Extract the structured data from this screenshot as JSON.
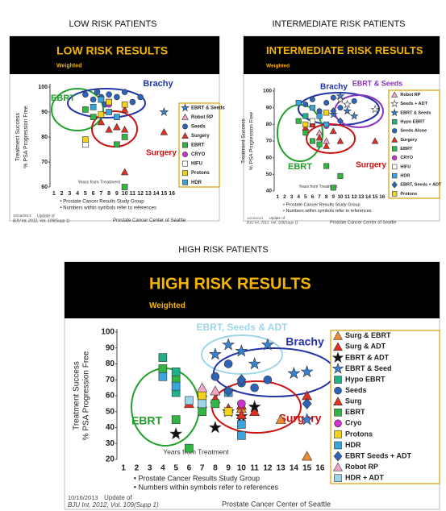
{
  "chart_data": [
    {
      "type": "scatter",
      "heading": "LOW RISK PATIENTS",
      "title": "LOW RISK RESULTS",
      "subtitle": "Weighted",
      "ylabel": [
        "Treatment Success",
        "% PSA Progression Free"
      ],
      "xlabel": "Years from Treatment",
      "xlim": [
        0.5,
        16.5
      ],
      "xticks": [
        1,
        2,
        3,
        4,
        5,
        6,
        7,
        8,
        9,
        10,
        11,
        12,
        13,
        14,
        15,
        16
      ],
      "ylim": [
        60,
        100
      ],
      "yticks": [
        60,
        70,
        80,
        90,
        100
      ],
      "annotations": [
        {
          "text": "EBRT",
          "color": "#22a02a"
        },
        {
          "text": "Brachy",
          "color": "#2233aa"
        },
        {
          "text": "Surgery",
          "color": "#cc1111"
        }
      ],
      "series": [
        {
          "name": "EBRT & Seeds",
          "marker": "star",
          "color": "#3a7fd0",
          "x": [
            15
          ],
          "values": [
            90
          ]
        },
        {
          "name": "Robot RP",
          "marker": "triangle",
          "color": "#f4a6c8",
          "x": [
            9
          ],
          "values": [
            84
          ]
        },
        {
          "name": "Seeds",
          "marker": "circle",
          "color": "#2e63b8",
          "x": [
            5,
            6,
            6.5,
            7,
            7.5,
            8,
            9,
            10,
            11,
            12
          ],
          "values": [
            97,
            95,
            98,
            96,
            93,
            97,
            96,
            98,
            94,
            96
          ]
        },
        {
          "name": "Surgery",
          "marker": "triangle",
          "color": "#e03020",
          "x": [
            7,
            8,
            9,
            10,
            10,
            10,
            15
          ],
          "values": [
            86,
            83,
            84,
            83,
            66,
            91,
            82
          ]
        },
        {
          "name": "EBRT",
          "marker": "square",
          "color": "#33b544",
          "x": [
            5,
            6,
            7,
            8,
            9,
            10,
            10
          ],
          "values": [
            91,
            88,
            95,
            94,
            77,
            80,
            60
          ]
        },
        {
          "name": "CRYO",
          "marker": "circle",
          "color": "#cc33cc",
          "x": [
            8
          ],
          "values": [
            93
          ]
        },
        {
          "name": "HIFU",
          "marker": "square",
          "color": "#ffffff",
          "x": [
            5
          ],
          "values": [
            77
          ]
        },
        {
          "name": "Protons",
          "marker": "square",
          "color": "#f2d21b",
          "x": [
            5,
            7,
            8,
            10
          ],
          "values": [
            79,
            89,
            94,
            93
          ]
        },
        {
          "name": "HDR",
          "marker": "square",
          "color": "#3aa5dc",
          "x": [
            6,
            7,
            8,
            9
          ],
          "values": [
            92,
            95,
            90,
            88
          ]
        }
      ],
      "notes": [
        "• Prostate Cancer Results Study Group",
        "• Numbers within symbols refer to references"
      ],
      "source": [
        "10/16/2013",
        "Update of",
        "BJU Int, 2012, Vol. 109(Supp 1)",
        "Prostate Cancer Center of Seattle"
      ]
    },
    {
      "type": "scatter",
      "heading": "INTERMEDIATE RISK PATIENTS",
      "title": "INTERMEDIATE RISK RESULTS",
      "subtitle": "Weighted",
      "ylabel": [
        "Treatment Success",
        "% PSA Progression Free"
      ],
      "xlabel": "Years from Treatment",
      "xlim": [
        0.5,
        16.5
      ],
      "xticks": [
        1,
        2,
        3,
        4,
        5,
        6,
        7,
        8,
        9,
        10,
        11,
        12,
        13,
        14,
        15,
        16
      ],
      "ylim": [
        40,
        100
      ],
      "yticks": [
        40,
        50,
        60,
        70,
        80,
        90,
        100
      ],
      "annotations": [
        {
          "text": "Brachy",
          "color": "#2233aa"
        },
        {
          "text": "EBRT & Seeds",
          "color": "#8833bb"
        },
        {
          "text": "EBRT",
          "color": "#22a02a"
        },
        {
          "text": "Surgery",
          "color": "#cc1111"
        }
      ],
      "series": [
        {
          "name": "Robot RP",
          "marker": "triangle",
          "color": "#f4a6c8",
          "x": [
            7,
            8
          ],
          "values": [
            75,
            70
          ]
        },
        {
          "name": "Seeds + ADT",
          "marker": "star",
          "color": "#ffffff",
          "x": [
            10,
            11,
            15
          ],
          "values": [
            95,
            92,
            89
          ]
        },
        {
          "name": "EBRT & Seeds",
          "marker": "star",
          "color": "#3a7fd0",
          "x": [
            9,
            10,
            11,
            12
          ],
          "values": [
            86,
            97,
            88,
            85
          ]
        },
        {
          "name": "Hypo EBRT",
          "marker": "square",
          "color": "#22b08a",
          "x": [
            5,
            6
          ],
          "values": [
            85,
            80
          ]
        },
        {
          "name": "Seeds Alone",
          "marker": "circle",
          "color": "#2e63b8",
          "x": [
            5,
            6,
            7,
            8,
            9,
            10,
            12
          ],
          "values": [
            92,
            95,
            88,
            93,
            96,
            90,
            94
          ]
        },
        {
          "name": "Surgery",
          "marker": "triangle",
          "color": "#e03020",
          "x": [
            5,
            6,
            7,
            8,
            9,
            10,
            15
          ],
          "values": [
            78,
            80,
            72,
            67,
            76,
            70,
            70
          ]
        },
        {
          "name": "EBRT",
          "marker": "square",
          "color": "#33b544",
          "x": [
            4,
            5,
            6,
            7,
            8,
            9,
            10
          ],
          "values": [
            82,
            75,
            70,
            68,
            55,
            42,
            49
          ]
        },
        {
          "name": "CRYO",
          "marker": "circle",
          "color": "#cc33cc",
          "x": [
            8
          ],
          "values": [
            79
          ]
        },
        {
          "name": "HIFU",
          "marker": "square",
          "color": "#ffffff",
          "x": [
            6
          ],
          "values": [
            82
          ]
        },
        {
          "name": "HDR",
          "marker": "square",
          "color": "#3aa5dc",
          "x": [
            4,
            6,
            7,
            8
          ],
          "values": [
            93,
            90,
            85,
            80
          ]
        },
        {
          "name": "EBRT, Seeds + ADT",
          "marker": "diamond",
          "color": "#2e63b8",
          "x": [
            9,
            10
          ],
          "values": [
            88,
            82
          ]
        },
        {
          "name": "Protons",
          "marker": "square",
          "color": "#f2d21b",
          "x": [
            5,
            8
          ],
          "values": [
            80,
            87
          ]
        }
      ],
      "notes": [
        "• Prostate Cancer Results Study Group",
        "• Numbers within symbols refer to references"
      ],
      "source": [
        "10/16/2013",
        "Update of",
        "BJU Int, 2012, Vol. 109(Supp 1)",
        "Prostate Cancer Center of Seattle"
      ]
    },
    {
      "type": "scatter",
      "heading": "HIGH RISK PATIENTS",
      "title": "HIGH RISK RESULTS",
      "subtitle": "Weighted",
      "ylabel": [
        "Treatment Success",
        "% PSA Progression Free"
      ],
      "xlabel": "Years from Treatment",
      "xlim": [
        0.5,
        16.5
      ],
      "xticks": [
        1,
        2,
        3,
        4,
        5,
        6,
        7,
        8,
        9,
        10,
        11,
        12,
        13,
        14,
        15,
        16
      ],
      "ylim": [
        20,
        100
      ],
      "yticks": [
        20,
        30,
        40,
        50,
        60,
        70,
        80,
        90,
        100
      ],
      "annotations": [
        {
          "text": "EBRT, Seeds & ADT",
          "color": "#9fd4ea"
        },
        {
          "text": "Brachy",
          "color": "#2233aa"
        },
        {
          "text": "EBRT",
          "color": "#22a02a"
        },
        {
          "text": "Surgery",
          "color": "#cc1111"
        }
      ],
      "series": [
        {
          "name": "Surg & EBRT",
          "marker": "triangle",
          "color": "#f08a30",
          "x": [
            7,
            10,
            13,
            15
          ],
          "values": [
            55,
            52,
            45,
            22
          ]
        },
        {
          "name": "Surg & ADT",
          "marker": "triangle",
          "color": "#e03020",
          "x": [
            10,
            11
          ],
          "values": [
            54,
            50
          ]
        },
        {
          "name": "EBRT & ADT",
          "marker": "star",
          "color": "#111111",
          "x": [
            5,
            8,
            9,
            10,
            11
          ],
          "values": [
            36,
            40,
            50,
            47,
            53
          ]
        },
        {
          "name": "EBRT & Seed",
          "marker": "star",
          "color": "#3a7fd0",
          "x": [
            8,
            9,
            10,
            11,
            12,
            14,
            15,
            15
          ],
          "values": [
            86,
            92,
            88,
            80,
            92,
            74,
            75,
            45
          ]
        },
        {
          "name": "Hypo EBRT",
          "marker": "square",
          "color": "#22b08a",
          "x": [
            4,
            5,
            5
          ],
          "values": [
            84,
            75,
            62
          ]
        },
        {
          "name": "Seeds",
          "marker": "circle",
          "color": "#2e63b8",
          "x": [
            8,
            9,
            10,
            11,
            12
          ],
          "values": [
            72,
            80,
            68,
            65,
            70
          ]
        },
        {
          "name": "Surg",
          "marker": "triangle",
          "color": "#e03020",
          "x": [
            6,
            7,
            8,
            9,
            10,
            15
          ],
          "values": [
            55,
            62,
            58,
            52,
            48,
            60
          ]
        },
        {
          "name": "EBRT",
          "marker": "square",
          "color": "#33b544",
          "x": [
            4,
            5,
            5,
            6,
            7,
            8
          ],
          "values": [
            77,
            70,
            45,
            27,
            50,
            55
          ]
        },
        {
          "name": "Cryo",
          "marker": "circle",
          "color": "#cc33cc",
          "x": [
            9,
            10
          ],
          "values": [
            50,
            55
          ]
        },
        {
          "name": "Protons",
          "marker": "square",
          "color": "#f2d21b",
          "x": [
            7,
            9
          ],
          "values": [
            60,
            50
          ]
        },
        {
          "name": "HDR",
          "marker": "square",
          "color": "#3aa5dc",
          "x": [
            4,
            5,
            9,
            10,
            10
          ],
          "values": [
            72,
            66,
            62,
            35,
            42
          ]
        },
        {
          "name": "EBRT Seeds + ADT",
          "marker": "diamond",
          "color": "#2e63b8",
          "x": [
            9,
            10,
            15
          ],
          "values": [
            63,
            70,
            55
          ]
        },
        {
          "name": "Robot RP",
          "marker": "triangle",
          "color": "#f4a6c8",
          "x": [
            7,
            8
          ],
          "values": [
            65,
            63
          ]
        },
        {
          "name": "HDR + ADT",
          "marker": "square",
          "color": "#9fd4ea",
          "x": [
            6,
            7
          ],
          "values": [
            57,
            55
          ]
        }
      ],
      "notes": [
        "• Prostate Cancer Results Study Group",
        "• Numbers within symbols refer to references"
      ],
      "source": [
        "10/16/2013",
        "Update of",
        "BJU Int, 2012, Vol. 109(Supp 1)",
        "Prostate Cancer Center of Seattle"
      ]
    }
  ]
}
